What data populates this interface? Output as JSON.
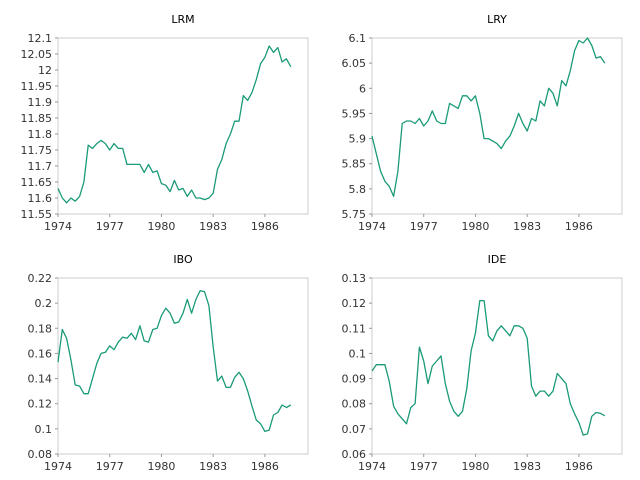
{
  "chart_data": [
    {
      "type": "line",
      "title": "LRM",
      "xlim": [
        1974,
        1988.5
      ],
      "ylim": [
        11.55,
        12.1
      ],
      "x_ticks": [
        "1974",
        "1977",
        "1980",
        "1983",
        "1986"
      ],
      "y_ticks": [
        "11.55",
        "11.6",
        "11.65",
        "11.7",
        "11.75",
        "11.8",
        "11.85",
        "11.9",
        "11.95",
        "12",
        "12.05",
        "12.1"
      ],
      "series": [
        {
          "values": [
            [
              1974.0,
              11.63
            ],
            [
              1974.25,
              11.6
            ],
            [
              1974.5,
              11.585
            ],
            [
              1974.75,
              11.6
            ],
            [
              1975.0,
              11.59
            ],
            [
              1975.25,
              11.605
            ],
            [
              1975.5,
              11.65
            ],
            [
              1975.75,
              11.765
            ],
            [
              1976.0,
              11.755
            ],
            [
              1976.25,
              11.77
            ],
            [
              1976.5,
              11.78
            ],
            [
              1976.75,
              11.77
            ],
            [
              1977.0,
              11.75
            ],
            [
              1977.25,
              11.77
            ],
            [
              1977.5,
              11.755
            ],
            [
              1977.75,
              11.755
            ],
            [
              1978.0,
              11.705
            ],
            [
              1978.25,
              11.705
            ],
            [
              1978.5,
              11.705
            ],
            [
              1978.75,
              11.705
            ],
            [
              1979.0,
              11.68
            ],
            [
              1979.25,
              11.705
            ],
            [
              1979.5,
              11.68
            ],
            [
              1979.75,
              11.685
            ],
            [
              1980.0,
              11.645
            ],
            [
              1980.25,
              11.64
            ],
            [
              1980.5,
              11.62
            ],
            [
              1980.75,
              11.655
            ],
            [
              1981.0,
              11.625
            ],
            [
              1981.25,
              11.63
            ],
            [
              1981.5,
              11.605
            ],
            [
              1981.75,
              11.625
            ],
            [
              1982.0,
              11.6
            ],
            [
              1982.25,
              11.6
            ],
            [
              1982.5,
              11.595
            ],
            [
              1982.75,
              11.6
            ],
            [
              1983.0,
              11.615
            ],
            [
              1983.25,
              11.69
            ],
            [
              1983.5,
              11.72
            ],
            [
              1983.75,
              11.77
            ],
            [
              1984.0,
              11.8
            ],
            [
              1984.25,
              11.84
            ],
            [
              1984.5,
              11.84
            ],
            [
              1984.75,
              11.92
            ],
            [
              1985.0,
              11.905
            ],
            [
              1985.25,
              11.93
            ],
            [
              1985.5,
              11.97
            ],
            [
              1985.75,
              12.02
            ],
            [
              1986.0,
              12.04
            ],
            [
              1986.25,
              12.075
            ],
            [
              1986.5,
              12.055
            ],
            [
              1986.75,
              12.07
            ],
            [
              1987.0,
              12.025
            ],
            [
              1987.25,
              12.035
            ],
            [
              1987.5,
              12.01
            ]
          ]
        }
      ]
    },
    {
      "type": "line",
      "title": "LRY",
      "xlim": [
        1974,
        1988.5
      ],
      "ylim": [
        5.75,
        6.1
      ],
      "x_ticks": [
        "1974",
        "1977",
        "1980",
        "1983",
        "1986"
      ],
      "y_ticks": [
        "5.75",
        "5.8",
        "5.85",
        "5.9",
        "5.95",
        "6",
        "6.05",
        "6.1"
      ],
      "series": [
        {
          "values": [
            [
              1974.0,
              5.905
            ],
            [
              1974.25,
              5.87
            ],
            [
              1974.5,
              5.835
            ],
            [
              1974.75,
              5.815
            ],
            [
              1975.0,
              5.805
            ],
            [
              1975.25,
              5.785
            ],
            [
              1975.5,
              5.835
            ],
            [
              1975.75,
              5.93
            ],
            [
              1976.0,
              5.935
            ],
            [
              1976.25,
              5.935
            ],
            [
              1976.5,
              5.93
            ],
            [
              1976.75,
              5.94
            ],
            [
              1977.0,
              5.925
            ],
            [
              1977.25,
              5.935
            ],
            [
              1977.5,
              5.955
            ],
            [
              1977.75,
              5.935
            ],
            [
              1978.0,
              5.93
            ],
            [
              1978.25,
              5.93
            ],
            [
              1978.5,
              5.97
            ],
            [
              1978.75,
              5.965
            ],
            [
              1979.0,
              5.96
            ],
            [
              1979.25,
              5.985
            ],
            [
              1979.5,
              5.985
            ],
            [
              1979.75,
              5.975
            ],
            [
              1980.0,
              5.985
            ],
            [
              1980.25,
              5.95
            ],
            [
              1980.5,
              5.9
            ],
            [
              1980.75,
              5.9
            ],
            [
              1981.0,
              5.895
            ],
            [
              1981.25,
              5.89
            ],
            [
              1981.5,
              5.88
            ],
            [
              1981.75,
              5.895
            ],
            [
              1982.0,
              5.905
            ],
            [
              1982.25,
              5.925
            ],
            [
              1982.5,
              5.95
            ],
            [
              1982.75,
              5.93
            ],
            [
              1983.0,
              5.915
            ],
            [
              1983.25,
              5.94
            ],
            [
              1983.5,
              5.935
            ],
            [
              1983.75,
              5.975
            ],
            [
              1984.0,
              5.965
            ],
            [
              1984.25,
              6.0
            ],
            [
              1984.5,
              5.99
            ],
            [
              1984.75,
              5.965
            ],
            [
              1985.0,
              6.015
            ],
            [
              1985.25,
              6.005
            ],
            [
              1985.5,
              6.035
            ],
            [
              1985.75,
              6.075
            ],
            [
              1986.0,
              6.095
            ],
            [
              1986.25,
              6.09
            ],
            [
              1986.5,
              6.1
            ],
            [
              1986.75,
              6.085
            ],
            [
              1987.0,
              6.06
            ],
            [
              1987.25,
              6.063
            ],
            [
              1987.5,
              6.05
            ]
          ]
        }
      ]
    },
    {
      "type": "line",
      "title": "IBO",
      "xlim": [
        1974,
        1988.5
      ],
      "ylim": [
        0.08,
        0.22
      ],
      "x_ticks": [
        "1974",
        "1977",
        "1980",
        "1983",
        "1986"
      ],
      "y_ticks": [
        "0.08",
        "0.1",
        "0.12",
        "0.14",
        "0.16",
        "0.18",
        "0.2",
        "0.22"
      ],
      "series": [
        {
          "values": [
            [
              1974.0,
              0.153
            ],
            [
              1974.25,
              0.179
            ],
            [
              1974.5,
              0.172
            ],
            [
              1974.75,
              0.155
            ],
            [
              1975.0,
              0.135
            ],
            [
              1975.25,
              0.134
            ],
            [
              1975.5,
              0.128
            ],
            [
              1975.75,
              0.128
            ],
            [
              1976.0,
              0.14
            ],
            [
              1976.25,
              0.152
            ],
            [
              1976.5,
              0.16
            ],
            [
              1976.75,
              0.161
            ],
            [
              1977.0,
              0.166
            ],
            [
              1977.25,
              0.163
            ],
            [
              1977.5,
              0.169
            ],
            [
              1977.75,
              0.173
            ],
            [
              1978.0,
              0.172
            ],
            [
              1978.25,
              0.176
            ],
            [
              1978.5,
              0.171
            ],
            [
              1978.75,
              0.182
            ],
            [
              1979.0,
              0.17
            ],
            [
              1979.25,
              0.169
            ],
            [
              1979.5,
              0.179
            ],
            [
              1979.75,
              0.18
            ],
            [
              1980.0,
              0.19
            ],
            [
              1980.25,
              0.196
            ],
            [
              1980.5,
              0.192
            ],
            [
              1980.75,
              0.184
            ],
            [
              1981.0,
              0.185
            ],
            [
              1981.25,
              0.192
            ],
            [
              1981.5,
              0.203
            ],
            [
              1981.75,
              0.192
            ],
            [
              1982.0,
              0.203
            ],
            [
              1982.25,
              0.21
            ],
            [
              1982.5,
              0.209
            ],
            [
              1982.75,
              0.198
            ],
            [
              1983.0,
              0.165
            ],
            [
              1983.25,
              0.138
            ],
            [
              1983.5,
              0.142
            ],
            [
              1983.75,
              0.133
            ],
            [
              1984.0,
              0.133
            ],
            [
              1984.25,
              0.141
            ],
            [
              1984.5,
              0.145
            ],
            [
              1984.75,
              0.14
            ],
            [
              1985.0,
              0.13
            ],
            [
              1985.25,
              0.118
            ],
            [
              1985.5,
              0.107
            ],
            [
              1985.75,
              0.104
            ],
            [
              1986.0,
              0.098
            ],
            [
              1986.25,
              0.099
            ],
            [
              1986.5,
              0.111
            ],
            [
              1986.75,
              0.113
            ],
            [
              1987.0,
              0.119
            ],
            [
              1987.25,
              0.117
            ],
            [
              1987.5,
              0.119
            ]
          ]
        }
      ]
    },
    {
      "type": "line",
      "title": "IDE",
      "xlim": [
        1974,
        1988.5
      ],
      "ylim": [
        0.06,
        0.13
      ],
      "x_ticks": [
        "1974",
        "1977",
        "1980",
        "1983",
        "1986"
      ],
      "y_ticks": [
        "0.06",
        "0.07",
        "0.08",
        "0.09",
        "0.1",
        "0.11",
        "0.12",
        "0.13"
      ],
      "series": [
        {
          "values": [
            [
              1974.0,
              0.093
            ],
            [
              1974.25,
              0.0955
            ],
            [
              1974.5,
              0.0955
            ],
            [
              1974.75,
              0.0955
            ],
            [
              1975.0,
              0.089
            ],
            [
              1975.25,
              0.079
            ],
            [
              1975.5,
              0.076
            ],
            [
              1975.75,
              0.074
            ],
            [
              1976.0,
              0.072
            ],
            [
              1976.25,
              0.0785
            ],
            [
              1976.5,
              0.08
            ],
            [
              1976.75,
              0.1025
            ],
            [
              1977.0,
              0.097
            ],
            [
              1977.25,
              0.088
            ],
            [
              1977.5,
              0.095
            ],
            [
              1977.75,
              0.097
            ],
            [
              1978.0,
              0.099
            ],
            [
              1978.25,
              0.088
            ],
            [
              1978.5,
              0.081
            ],
            [
              1978.75,
              0.077
            ],
            [
              1979.0,
              0.075
            ],
            [
              1979.25,
              0.077
            ],
            [
              1979.5,
              0.086
            ],
            [
              1979.75,
              0.101
            ],
            [
              1980.0,
              0.108
            ],
            [
              1980.25,
              0.121
            ],
            [
              1980.5,
              0.121
            ],
            [
              1980.75,
              0.107
            ],
            [
              1981.0,
              0.105
            ],
            [
              1981.25,
              0.109
            ],
            [
              1981.5,
              0.111
            ],
            [
              1981.75,
              0.109
            ],
            [
              1982.0,
              0.107
            ],
            [
              1982.25,
              0.111
            ],
            [
              1982.5,
              0.111
            ],
            [
              1982.75,
              0.11
            ],
            [
              1983.0,
              0.106
            ],
            [
              1983.25,
              0.087
            ],
            [
              1983.5,
              0.083
            ],
            [
              1983.75,
              0.085
            ],
            [
              1984.0,
              0.085
            ],
            [
              1984.25,
              0.083
            ],
            [
              1984.5,
              0.085
            ],
            [
              1984.75,
              0.092
            ],
            [
              1985.0,
              0.09
            ],
            [
              1985.25,
              0.088
            ],
            [
              1985.5,
              0.08
            ],
            [
              1985.75,
              0.076
            ],
            [
              1986.0,
              0.0725
            ],
            [
              1986.25,
              0.0675
            ],
            [
              1986.5,
              0.068
            ],
            [
              1986.75,
              0.075
            ],
            [
              1987.0,
              0.0765
            ],
            [
              1987.25,
              0.0762
            ],
            [
              1987.5,
              0.0752
            ]
          ]
        }
      ]
    }
  ],
  "colors": {
    "line": "#1a9a78",
    "frame": "#cccccc",
    "grid": "#e6e6e6"
  }
}
